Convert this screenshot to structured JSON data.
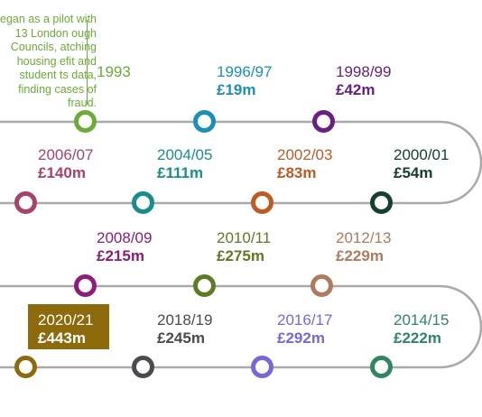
{
  "intro_text": "egan as a pilot with 13 London ough Councils, atching housing efit and student ts data, finding cases of fraud.",
  "milestones": [
    {
      "year": "1993",
      "amount": "",
      "color": "#6bab39"
    },
    {
      "year": "1996/97",
      "amount": "£19m",
      "color": "#1b8fb7"
    },
    {
      "year": "1998/99",
      "amount": "£42m",
      "color": "#6b1e83"
    },
    {
      "year": "2000/01",
      "amount": "£54m",
      "color": "#17402c"
    },
    {
      "year": "2002/03",
      "amount": "£83m",
      "color": "#bf5a23"
    },
    {
      "year": "2004/05",
      "amount": "£111m",
      "color": "#178e8b"
    },
    {
      "year": "2006/07",
      "amount": "£140m",
      "color": "#a8416b"
    },
    {
      "year": "2008/09",
      "amount": "£215m",
      "color": "#8c1d7a"
    },
    {
      "year": "2010/11",
      "amount": "£275m",
      "color": "#5d7a24"
    },
    {
      "year": "2012/13",
      "amount": "£229m",
      "color": "#b07a5e"
    },
    {
      "year": "2014/15",
      "amount": "£222m",
      "color": "#2f8662"
    },
    {
      "year": "2016/17",
      "amount": "£292m",
      "color": "#7a66dc"
    },
    {
      "year": "2018/19",
      "amount": "£245m",
      "color": "#4a4a4f"
    },
    {
      "year": "2020/21",
      "amount": "£443m",
      "color": "#8d6a0c"
    }
  ],
  "track_color": "#a9a9a9",
  "highlight_text_color": "#ffffff"
}
